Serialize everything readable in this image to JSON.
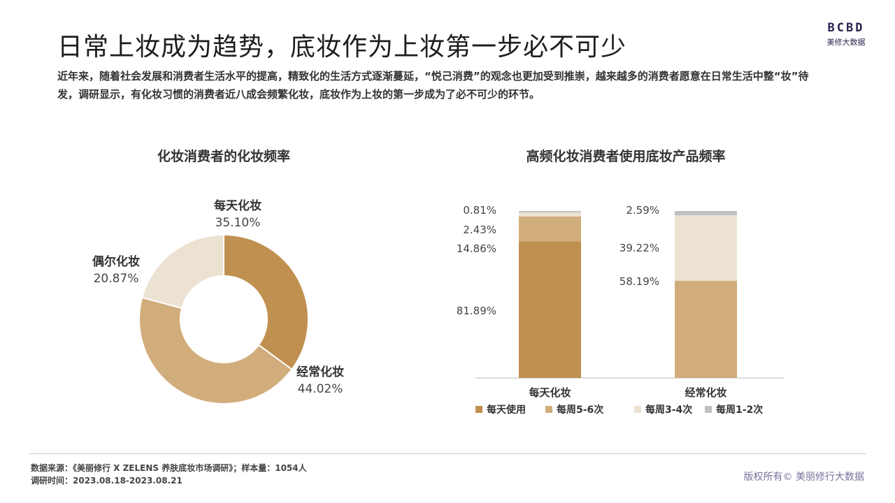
{
  "page": {
    "title": "日常上妆成为趋势，底妆作为上妆第一步必不可少",
    "intro": "近年来，随着社会发展和消费者生活水平的提高，精致化的生活方式逐渐蔓延，“悦己消费”的观念也更加受到推崇，越来越多的消费者愿意在日常生活中整“妆”待发，调研显示，有化妆习惯的消费者近八成会频繁化妆，底妆作为上妆的第一步成为了必不可少的环节。",
    "logo": {
      "mark": "BCBD",
      "sub": "美修大数据"
    },
    "footer": {
      "source": "数据来源：《美丽修行 X ZELENS 养肤底妆市场调研》；样本量：1054人",
      "period": "调研时间：2023.08.18-2023.08.21",
      "copyright": "版权所有© 美丽修行大数据"
    },
    "colors": {
      "dark": "#c09050",
      "medium": "#d2ad7c",
      "light": "#ece2d2",
      "gray": "#c0c0c0",
      "text": "#333333"
    }
  },
  "chart_data": [
    {
      "type": "pie",
      "subtype": "donut",
      "title": "化妆消费者的化妆频率",
      "slices": [
        {
          "label": "每天化妆",
          "value": 35.1,
          "display": "35.10%",
          "color": "#c09050"
        },
        {
          "label": "经常化妆",
          "value": 44.02,
          "display": "44.02%",
          "color": "#d2ad7c"
        },
        {
          "label": "偶尔化妆",
          "value": 20.87,
          "display": "20.87%",
          "color": "#ece2d2"
        }
      ]
    },
    {
      "type": "bar",
      "subtype": "stacked-100",
      "title": "高频化妆消费者使用底妆产品频率",
      "categories": [
        "每天化妆",
        "经常化妆"
      ],
      "series": [
        {
          "name": "每天使用",
          "color": "#c09050",
          "values": [
            81.89,
            0
          ],
          "labels": [
            "81.89%",
            ""
          ]
        },
        {
          "name": "每周5-6次",
          "color": "#d2ad7c",
          "values": [
            14.86,
            58.19
          ],
          "labels": [
            "14.86%",
            "58.19%"
          ]
        },
        {
          "name": "每周3-4次",
          "color": "#ece2d2",
          "values": [
            2.43,
            39.22
          ],
          "labels": [
            "2.43%",
            "39.22%"
          ]
        },
        {
          "name": "每周1-2次",
          "color": "#c0c0c0",
          "values": [
            0.81,
            2.59
          ],
          "labels": [
            "0.81%",
            "2.59%"
          ]
        }
      ],
      "ylim": [
        0,
        100
      ],
      "legend": "bottom"
    }
  ]
}
